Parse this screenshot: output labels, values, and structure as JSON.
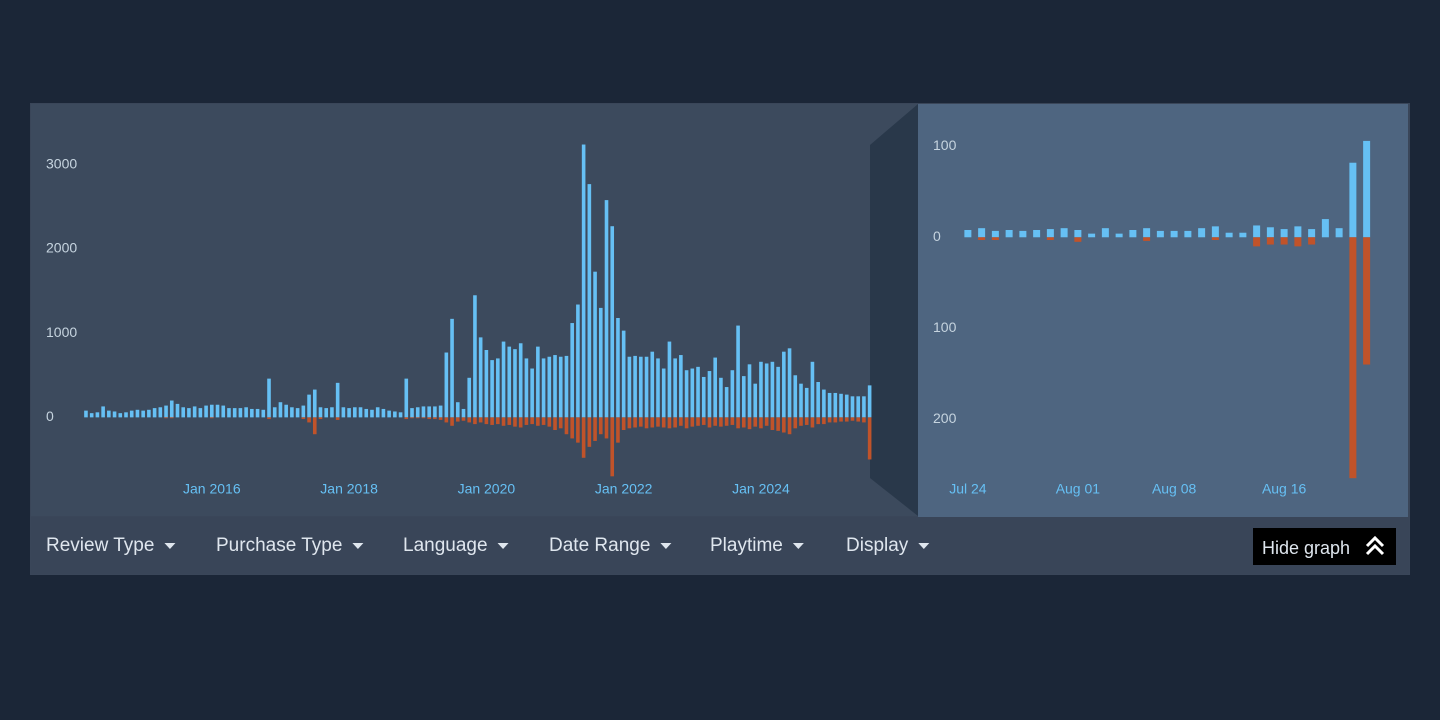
{
  "chart_data": [
    {
      "type": "bar",
      "categories": [
        null,
        null,
        null,
        null,
        null,
        null,
        null,
        null,
        null,
        null,
        null,
        null,
        null,
        null,
        null,
        null,
        null,
        null,
        null,
        null,
        null,
        null,
        "Jan 2016",
        null,
        null,
        null,
        null,
        null,
        null,
        null,
        null,
        null,
        null,
        null,
        null,
        null,
        null,
        null,
        null,
        null,
        null,
        null,
        null,
        null,
        null,
        null,
        "Jan 2018",
        null,
        null,
        null,
        null,
        null,
        null,
        null,
        null,
        null,
        null,
        null,
        null,
        null,
        null,
        null,
        null,
        null,
        null,
        null,
        null,
        null,
        null,
        null,
        "Jan 2020",
        null,
        null,
        null,
        null,
        null,
        null,
        null,
        null,
        null,
        null,
        null,
        null,
        null,
        null,
        null,
        null,
        null,
        null,
        null,
        null,
        null,
        null,
        null,
        "Jan 2022",
        null,
        null,
        null,
        null,
        null,
        null,
        null,
        null,
        null,
        null,
        null,
        null,
        null,
        null,
        null,
        null,
        null,
        null,
        null,
        null,
        null,
        null,
        null,
        "Jan 2024",
        null,
        null,
        null,
        null,
        null,
        null,
        null,
        null,
        null,
        null,
        null,
        null,
        null,
        null,
        null,
        null,
        null,
        null,
        null
      ],
      "series": [
        {
          "color": "#66c0f4",
          "values": [
            80,
            50,
            60,
            130,
            80,
            70,
            50,
            60,
            80,
            90,
            80,
            90,
            110,
            120,
            140,
            200,
            160,
            120,
            110,
            130,
            110,
            140,
            150,
            150,
            140,
            110,
            110,
            110,
            120,
            100,
            100,
            90,
            460,
            120,
            180,
            150,
            120,
            110,
            140,
            270,
            330,
            120,
            110,
            120,
            410,
            120,
            110,
            120,
            120,
            100,
            90,
            120,
            100,
            80,
            70,
            60,
            460,
            110,
            120,
            130,
            130,
            130,
            140,
            770,
            1170,
            180,
            100,
            470,
            1450,
            950,
            800,
            680,
            700,
            900,
            840,
            810,
            880,
            700,
            580,
            840,
            700,
            720,
            740,
            720,
            730,
            1120,
            1340,
            3240,
            2770,
            1730,
            1300,
            2580,
            2270,
            1180,
            1030,
            720,
            730,
            720,
            720,
            780,
            700,
            580,
            900,
            700,
            740,
            560,
            580,
            600,
            480,
            550,
            710,
            470,
            360,
            560,
            1090,
            490,
            630,
            400,
            660,
            640,
            660,
            600,
            780,
            820,
            500,
            400,
            350,
            660,
            420,
            330,
            290,
            290,
            280,
            270,
            250,
            250,
            250,
            380
          ]
        },
        {
          "color": "#c0532a",
          "values": [
            0,
            0,
            0,
            0,
            0,
            0,
            0,
            0,
            0,
            0,
            0,
            0,
            0,
            0,
            -10,
            -10,
            0,
            0,
            0,
            0,
            0,
            0,
            -10,
            0,
            0,
            0,
            0,
            0,
            0,
            0,
            0,
            0,
            -20,
            0,
            0,
            0,
            0,
            0,
            -20,
            -60,
            -200,
            -20,
            0,
            0,
            -30,
            0,
            0,
            0,
            0,
            0,
            0,
            0,
            0,
            0,
            0,
            0,
            -20,
            -10,
            -10,
            -10,
            -20,
            -20,
            -30,
            -60,
            -100,
            -50,
            -40,
            -60,
            -80,
            -60,
            -80,
            -90,
            -80,
            -100,
            -90,
            -110,
            -120,
            -90,
            -80,
            -100,
            -90,
            -110,
            -150,
            -130,
            -200,
            -250,
            -300,
            -480,
            -350,
            -280,
            -200,
            -250,
            -700,
            -300,
            -150,
            -130,
            -120,
            -110,
            -130,
            -120,
            -110,
            -120,
            -130,
            -120,
            -100,
            -130,
            -110,
            -100,
            -90,
            -120,
            -100,
            -110,
            -100,
            -90,
            -130,
            -120,
            -140,
            -110,
            -130,
            -100,
            -150,
            -160,
            -180,
            -200,
            -130,
            -100,
            -90,
            -120,
            -80,
            -80,
            -60,
            -60,
            -50,
            -50,
            -40,
            -50,
            -60,
            -500
          ]
        }
      ],
      "ylim": [
        -1100,
        3650
      ],
      "yticks": [
        0,
        1000,
        2000,
        3000
      ]
    },
    {
      "type": "bar",
      "categories": [
        "Jul 24",
        null,
        null,
        null,
        null,
        null,
        null,
        null,
        "Aug 01",
        null,
        null,
        null,
        null,
        null,
        null,
        "Aug 08",
        null,
        null,
        null,
        null,
        null,
        null,
        null,
        "Aug 16",
        null,
        null,
        null,
        null,
        null,
        null
      ],
      "series": [
        {
          "color": "#66c0f4",
          "values": [
            8,
            10,
            7,
            8,
            7,
            8,
            9,
            10,
            8,
            4,
            10,
            4,
            8,
            10,
            7,
            7,
            7,
            10,
            12,
            5,
            5,
            13,
            11,
            9,
            12,
            9,
            20,
            10,
            82,
            106
          ]
        },
        {
          "color": "#c0532a",
          "values": [
            0,
            -3,
            -3,
            0,
            0,
            0,
            -3,
            0,
            -5,
            0,
            0,
            0,
            0,
            -4,
            0,
            0,
            0,
            0,
            -3,
            0,
            0,
            -10,
            -8,
            -8,
            -10,
            -8,
            0,
            0,
            -265,
            -140
          ]
        }
      ],
      "ylim": [
        -300,
        140
      ],
      "yticks": [
        {
          "value": -200,
          "label": "200"
        },
        {
          "value": -100,
          "label": "100"
        },
        0,
        100
      ]
    }
  ],
  "filters": [
    "Review Type",
    "Purchase Type",
    "Language",
    "Date Range",
    "Playtime",
    "Display"
  ],
  "hide_graph": "Hide graph"
}
